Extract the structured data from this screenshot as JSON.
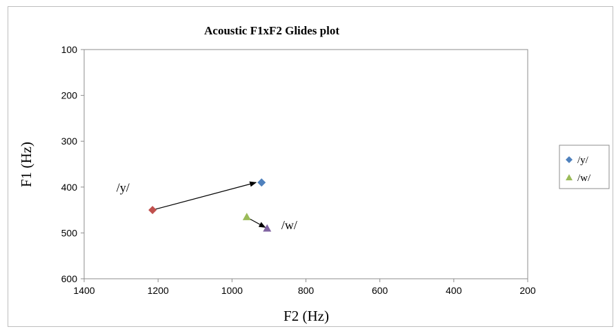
{
  "chart_data": {
    "type": "scatter",
    "title": "Acoustic F1xF2 Glides plot",
    "xlabel": "F2 (Hz)",
    "ylabel": "F1 (Hz)",
    "xlim": [
      1400,
      200
    ],
    "ylim": [
      100,
      600
    ],
    "x_reversed": true,
    "y_reversed": true,
    "x_ticks": [
      "1400",
      "1200",
      "1000",
      "800",
      "600",
      "400",
      "200"
    ],
    "y_ticks": [
      "100",
      "200",
      "300",
      "400",
      "500",
      "600"
    ],
    "grid": false,
    "legend_position": "right",
    "series": [
      {
        "name": "/y/",
        "marker": "diamond",
        "color": "#4f81bd",
        "points": [
          [
            920,
            390
          ]
        ]
      },
      {
        "name": "/w/",
        "marker": "triangle",
        "color": "#9bbb59",
        "points": [
          [
            960,
            465
          ]
        ]
      }
    ],
    "extra_points": [
      {
        "marker": "diamond",
        "color": "#c0504d",
        "x": 1215,
        "y": 450
      },
      {
        "marker": "triangle",
        "color": "#8064a2",
        "x": 905,
        "y": 490
      }
    ],
    "arrows": [
      {
        "from": [
          1215,
          450
        ],
        "to": [
          935,
          390
        ]
      },
      {
        "from": [
          955,
          468
        ],
        "to": [
          910,
          488
        ]
      }
    ],
    "annotations": [
      {
        "text": "/y/",
        "x": 1295,
        "y": 410
      },
      {
        "text": "/w/",
        "x": 845,
        "y": 492
      }
    ]
  }
}
